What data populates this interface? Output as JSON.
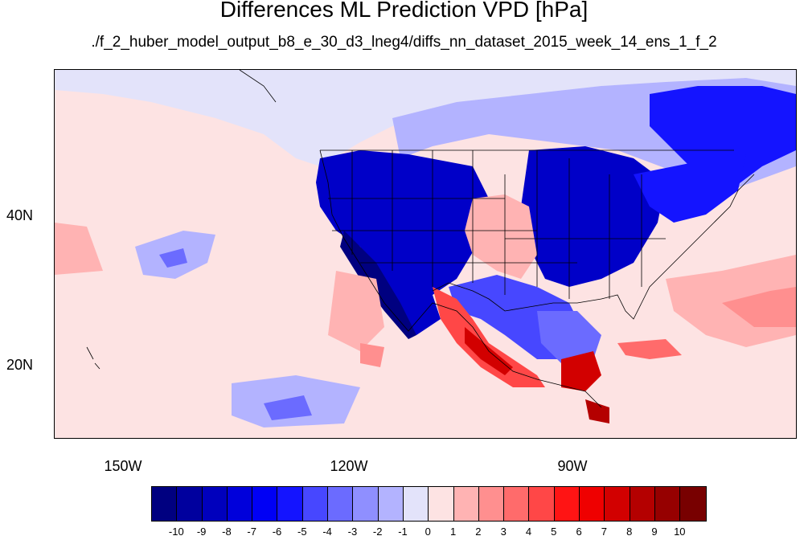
{
  "title": "Differences ML Prediction VPD [hPa]",
  "subtitle": "./f_2_huber_model_output_b8_e_30_d3_lneg4/diffs_nn_dataset_2015_week_14_ens_1_f_2",
  "lat_ticks": [
    "40N",
    "20N"
  ],
  "lon_ticks": [
    "150W",
    "120W",
    "90W"
  ],
  "colorbar": {
    "labels": [
      "-10",
      "-9",
      "-8",
      "-7",
      "-6",
      "-5",
      "-4",
      "-3",
      "-2",
      "-1",
      "0",
      "1",
      "2",
      "3",
      "4",
      "5",
      "6",
      "7",
      "8",
      "9",
      "10"
    ],
    "colors": [
      "#000080",
      "#00009e",
      "#0000bd",
      "#0000db",
      "#0000f5",
      "#1414ff",
      "#4747ff",
      "#6b6bff",
      "#8f8fff",
      "#b3b3ff",
      "#e3e3fa",
      "#fde3e3",
      "#ffb3b3",
      "#ff8f8f",
      "#ff6b6b",
      "#ff4747",
      "#ff1414",
      "#ef0000",
      "#d20000",
      "#b40000",
      "#960000",
      "#780000"
    ]
  },
  "colors": {
    "deep_blue": "#0000c8",
    "mid_blue": "#5a5aff",
    "light_blue": "#c8c8ff",
    "faint_red": "#fde3e3",
    "light_red": "#ffb3b3",
    "red": "#ff2020",
    "dark_red": "#8b0000"
  }
}
